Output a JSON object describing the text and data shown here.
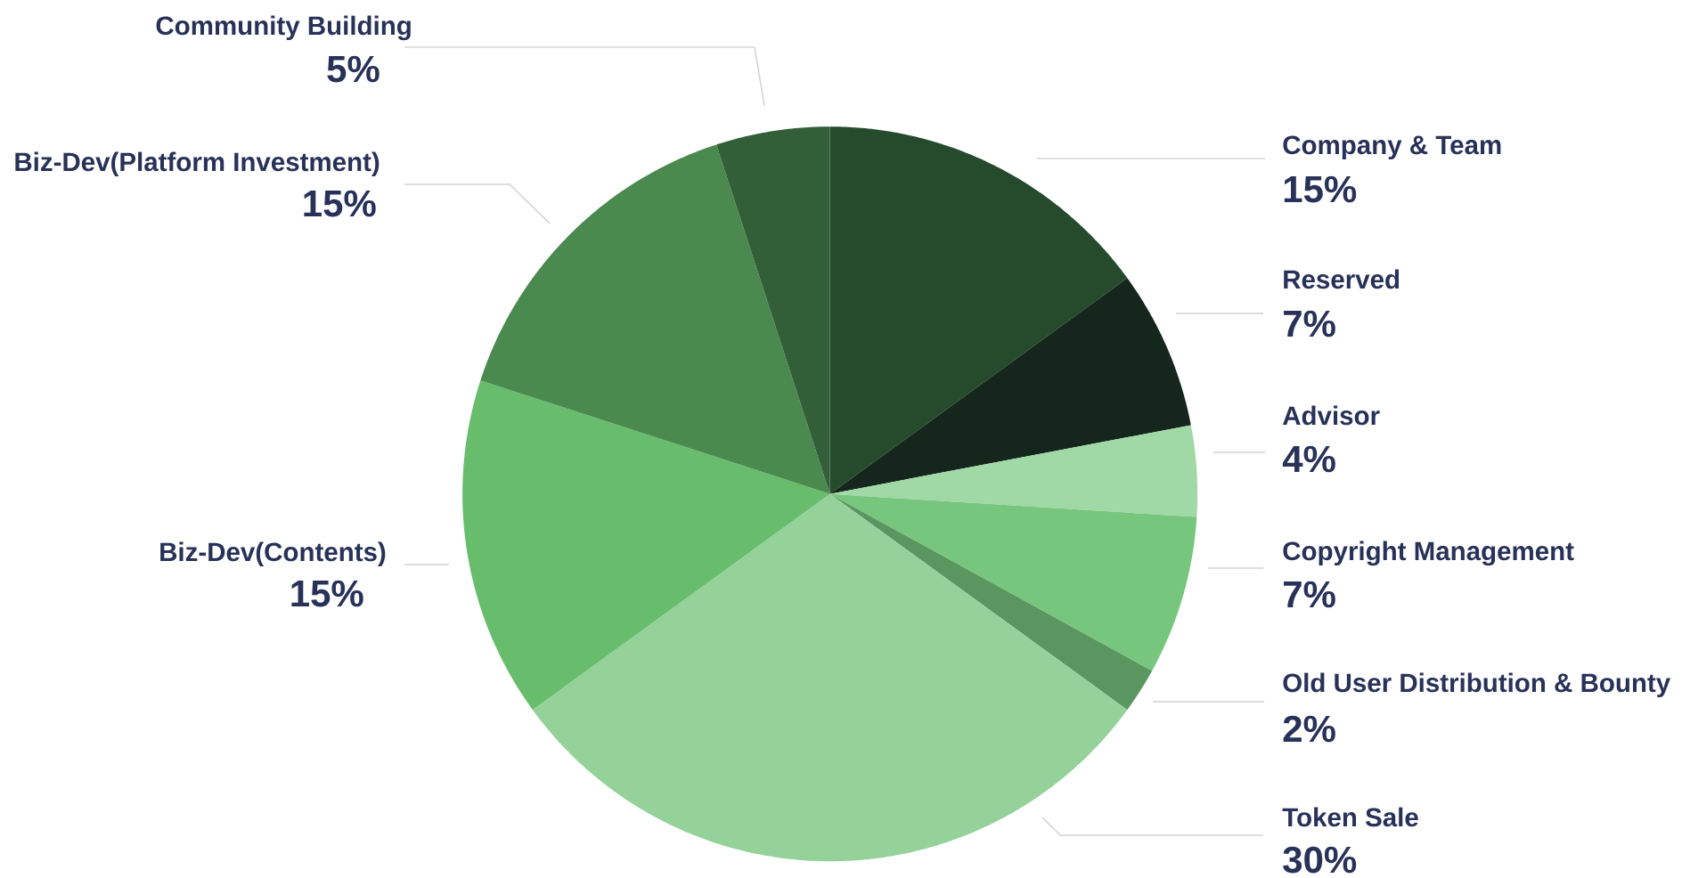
{
  "chart_data": {
    "type": "pie",
    "categories": [
      "Company & Team",
      "Reserved",
      "Advisor",
      "Copyright Management",
      "Old User Distribution & Bounty",
      "Token Sale",
      "Biz-Dev(Contents)",
      "Biz-Dev(Platform Investment)",
      "Community Building"
    ],
    "values": [
      15,
      7,
      4,
      7,
      2,
      30,
      15,
      15,
      5
    ],
    "value_labels": [
      "15%",
      "7%",
      "4%",
      "7%",
      "2%",
      "30%",
      "15%",
      "15%",
      "5%"
    ],
    "colors": [
      "#264a2c",
      "#15271c",
      "#a0d8a6",
      "#77c67e",
      "#5a965f",
      "#94d29a",
      "#67bd6c",
      "#4a8a4f",
      "#325e38"
    ]
  }
}
